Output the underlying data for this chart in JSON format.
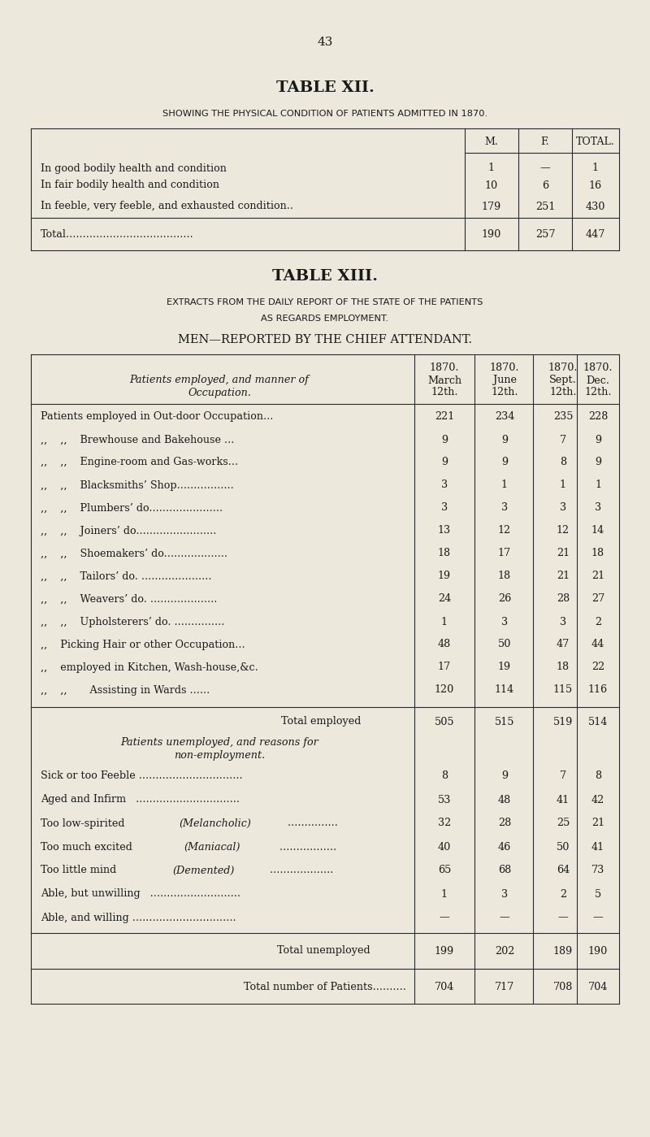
{
  "bg_color": "#ede8dc",
  "text_color": "#1a1a1a",
  "page_number": "43",
  "table12": {
    "title": "TABLE XII.",
    "subtitle": "SHOWING THE PHYSICAL CONDITION OF PATIENTS ADMITTED IN 1870.",
    "rows": [
      [
        "In good bodily health and condition           ",
        "1",
        "—",
        "1"
      ],
      [
        "In fair bodily health and condition            ",
        "10",
        "6",
        "16"
      ],
      [
        "In feeble, very feeble, and exhausted condition..",
        "179",
        "251",
        "430"
      ]
    ],
    "total_row": [
      "Total......................................",
      "190",
      "257",
      "447"
    ]
  },
  "table13": {
    "title": "TABLE XIII.",
    "subtitle1": "EXTRACTS FROM THE DAILY REPORT OF THE STATE OF THE PATIENTS",
    "subtitle2": "AS REGARDS EMPLOYMENT.",
    "subtitle3": "MEN—REPORTED BY THE CHIEF ATTENDANT.",
    "employed_rows": [
      [
        "Patients employed in Out-door Occupation...",
        "221",
        "234",
        "235",
        "228"
      ],
      [
        ",,    ,,    Brewhouse and Bakehouse ...",
        "9",
        "9",
        "7",
        "9"
      ],
      [
        ",,    ,,    Engine-room and Gas-works...",
        "9",
        "9",
        "8",
        "9"
      ],
      [
        ",,    ,,    Blacksmiths’ Shop.................",
        "3",
        "1",
        "1",
        "1"
      ],
      [
        ",,    ,,    Plumbers’ do......................",
        "3",
        "3",
        "3",
        "3"
      ],
      [
        ",,    ,,    Joiners’ do........................",
        "13",
        "12",
        "12",
        "14"
      ],
      [
        ",,    ,,    Shoemakers’ do...................",
        "18",
        "17",
        "21",
        "18"
      ],
      [
        ",,    ,,    Tailors’ do. .....................",
        "19",
        "18",
        "21",
        "21"
      ],
      [
        ",,    ,,    Weavers’ do. ....................",
        "24",
        "26",
        "28",
        "27"
      ],
      [
        ",,    ,,    Upholsterers’ do. ...............",
        "1",
        "3",
        "3",
        "2"
      ],
      [
        ",,    Picking Hair or other Occupation...",
        "48",
        "50",
        "47",
        "44"
      ],
      [
        ",,    employed in Kitchen, Wash-house,&c.",
        "17",
        "19",
        "18",
        "22"
      ],
      [
        ",,    ,,       Assisting in Wards ......",
        "120",
        "114",
        "115",
        "116"
      ]
    ],
    "total_employed_row": [
      "Total employed              ",
      "505",
      "515",
      "519",
      "514"
    ],
    "unemployed_header1": "Patients unemployed, and reasons for",
    "unemployed_header2": "non-employment.",
    "unemployed_rows": [
      [
        "Sick or too Feeble ...............................",
        "8",
        "9",
        "7",
        "8"
      ],
      [
        "Aged and Infirm   ...............................",
        "53",
        "48",
        "41",
        "42"
      ],
      [
        "Too low-spirited (Melancholic) ...............",
        "32",
        "28",
        "25",
        "21"
      ],
      [
        "Too much excited (Maniacal) .................",
        "40",
        "46",
        "50",
        "41"
      ],
      [
        "Too little mind (Demented) ...................",
        "65",
        "68",
        "64",
        "73"
      ],
      [
        "Able, but unwilling   ...........................",
        "1",
        "3",
        "2",
        "5"
      ],
      [
        "Able, and willing ...............................",
        "—",
        "—",
        "—",
        "—"
      ]
    ],
    "total_unemployed_row": [
      "Total unemployed           ",
      "199",
      "202",
      "189",
      "190"
    ],
    "total_patients_row": [
      "Total number of Patients..........",
      "704",
      "717",
      "708",
      "704"
    ]
  }
}
